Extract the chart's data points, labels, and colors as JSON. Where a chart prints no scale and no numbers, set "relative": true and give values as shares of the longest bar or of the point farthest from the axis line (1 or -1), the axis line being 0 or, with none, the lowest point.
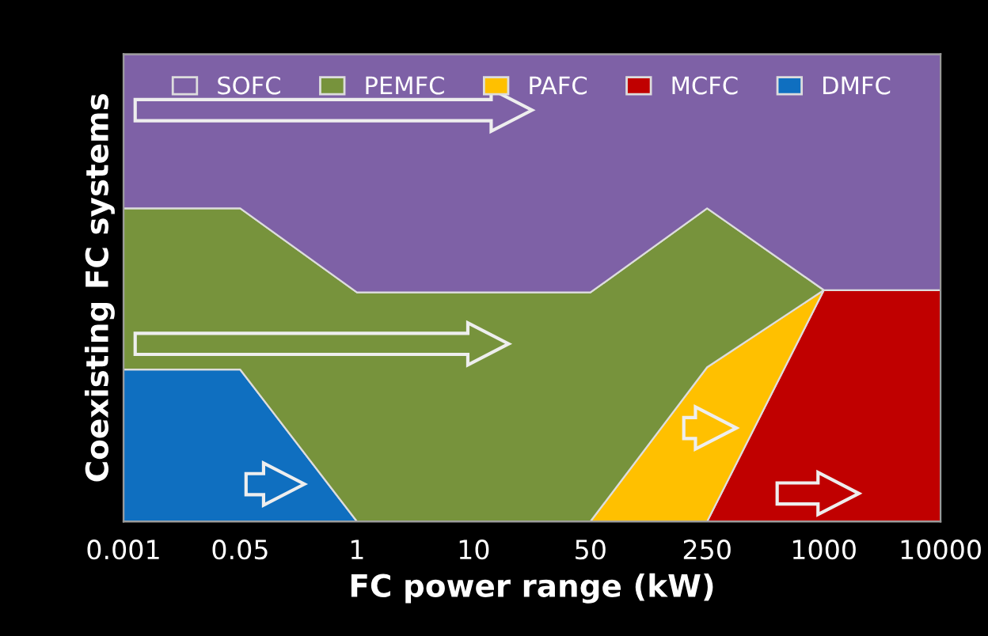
{
  "chart_data": {
    "type": "area",
    "stacked": true,
    "relative": true,
    "xlabel": "FC power range (kW)",
    "ylabel": "Coexisting FC systems",
    "categories": [
      "0.001",
      "0.05",
      "1",
      "10",
      "50",
      "250",
      "1000",
      "10000"
    ],
    "series": [
      {
        "name": "DMFC",
        "color": "#0f6fc0",
        "values": [
          0.325,
          0.325,
          0,
          null,
          null,
          null,
          null,
          null
        ]
      },
      {
        "name": "MCFC",
        "color": "#c00000",
        "values": [
          null,
          null,
          null,
          null,
          null,
          0,
          0.495,
          0.495
        ]
      },
      {
        "name": "PAFC",
        "color": "#ffc000",
        "values": [
          null,
          null,
          null,
          null,
          0,
          0.33,
          0,
          null
        ]
      },
      {
        "name": "PEMFC",
        "color": "#77933c",
        "values": [
          0.345,
          0.345,
          0.49,
          0.49,
          0.49,
          0.34,
          0,
          null
        ]
      },
      {
        "name": "SOFC",
        "color": "#7e61a6",
        "values": [
          0.33,
          0.33,
          0.51,
          0.51,
          0.51,
          0.33,
          0.505,
          0.505
        ]
      }
    ],
    "legend": "top",
    "grid": false
  }
}
